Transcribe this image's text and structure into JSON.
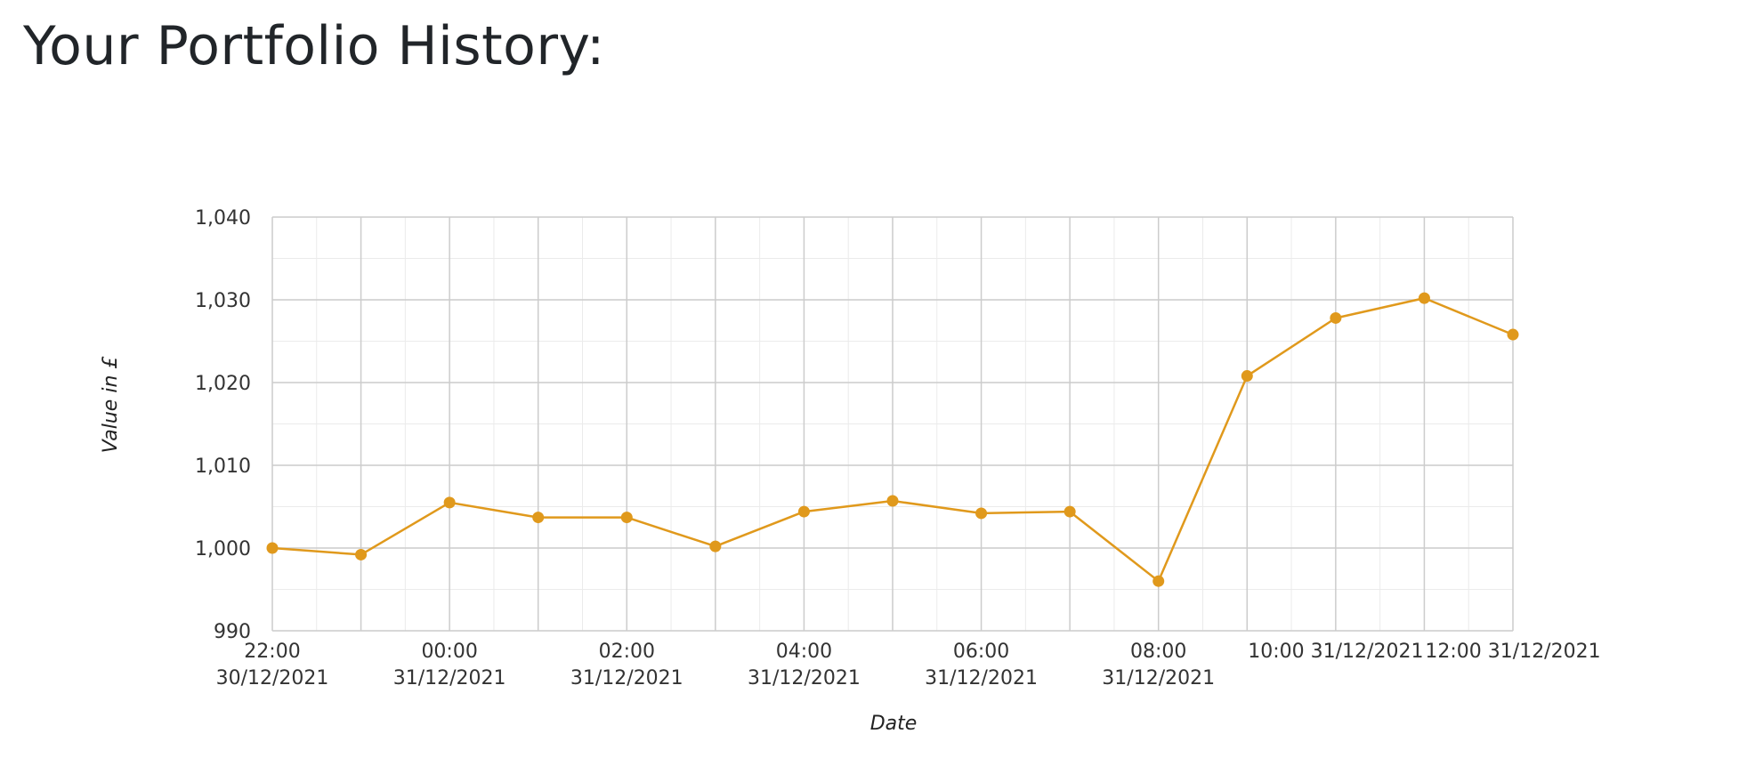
{
  "page": {
    "title": "Your Portfolio History:"
  },
  "chart_data": {
    "type": "line",
    "title": "",
    "xlabel": "Date",
    "ylabel": "Value in £",
    "x": [
      "2021-12-30T22:00",
      "2021-12-30T23:00",
      "2021-12-31T00:00",
      "2021-12-31T01:00",
      "2021-12-31T02:00",
      "2021-12-31T03:00",
      "2021-12-31T04:00",
      "2021-12-31T05:00",
      "2021-12-31T06:00",
      "2021-12-31T07:00",
      "2021-12-31T08:00",
      "2021-12-31T09:00",
      "2021-12-31T10:00",
      "2021-12-31T11:00",
      "2021-12-31T12:00"
    ],
    "series": [
      {
        "values": [
          1000.0,
          999.2,
          1005.5,
          1003.7,
          1003.7,
          1000.2,
          1004.4,
          1005.7,
          1004.2,
          1004.4,
          996.0,
          1020.8,
          1027.8,
          1030.2,
          1025.8
        ]
      }
    ],
    "ylim": [
      990,
      1040
    ],
    "y_ticks": [
      "990",
      "1,000",
      "1,010",
      "1,020",
      "1,030",
      "1,040"
    ],
    "x_ticks": [
      {
        "time": "22:00",
        "date": "30/12/2021"
      },
      {
        "time": "00:00",
        "date": "31/12/2021"
      },
      {
        "time": "02:00",
        "date": "31/12/2021"
      },
      {
        "time": "04:00",
        "date": "31/12/2021"
      },
      {
        "time": "06:00",
        "date": "31/12/2021"
      },
      {
        "time": "08:00",
        "date": "31/12/2021"
      },
      {
        "time": "10:00 31/12/2021",
        "date": ""
      },
      {
        "time": "12:00 31/12/2021",
        "date": ""
      }
    ],
    "grid": true,
    "legend": "none",
    "colors": {
      "line": "#e0991c",
      "grid_major": "#cccccc",
      "grid_minor": "#ebebeb"
    }
  }
}
